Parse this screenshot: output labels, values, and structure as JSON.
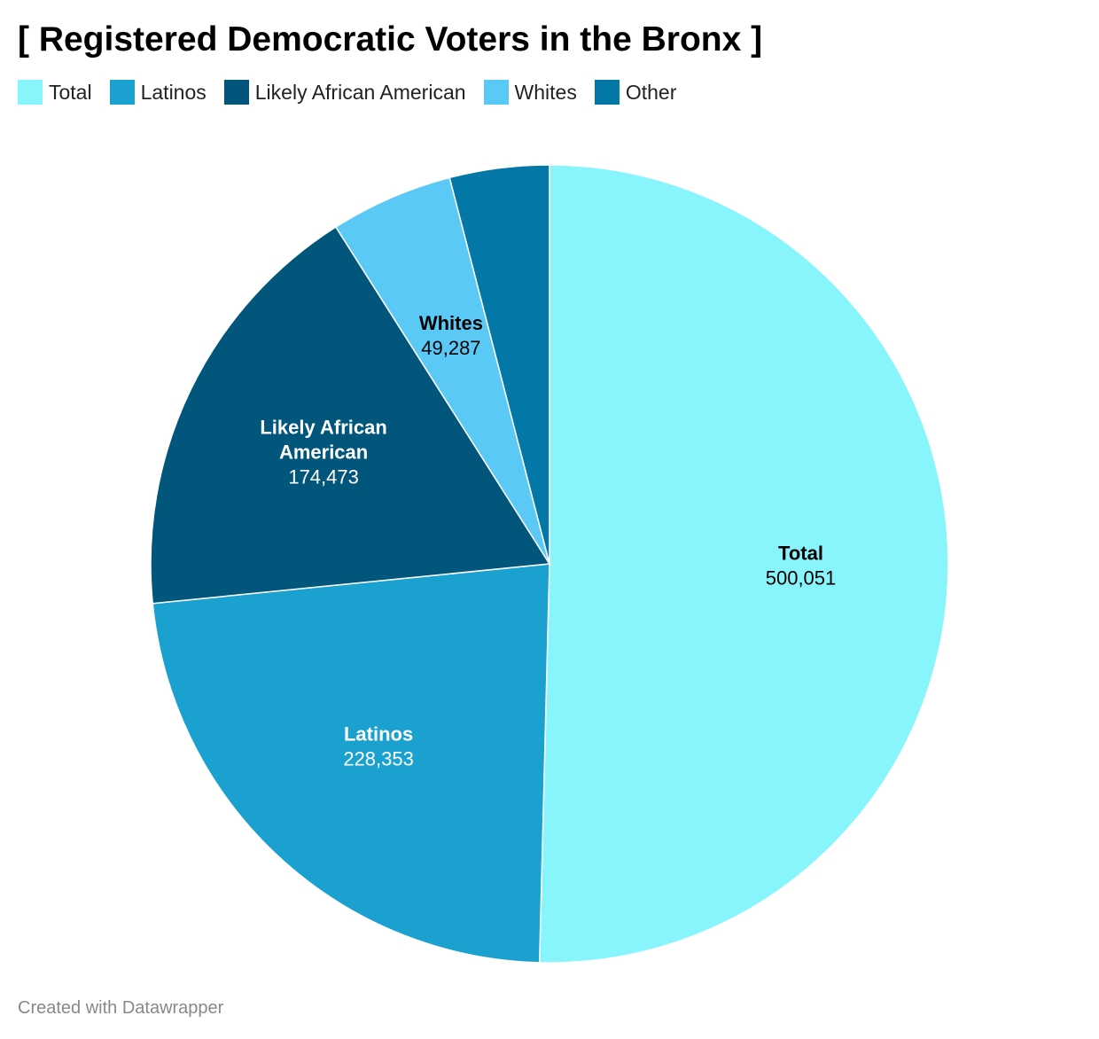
{
  "title": "[ Registered Democratic Voters in the Bronx ]",
  "credit": "Created with Datawrapper",
  "colors": {
    "background": "#ffffff",
    "slice_border": "#ffffff"
  },
  "chart_data": {
    "type": "pie",
    "title": "[ Registered Democratic Voters in the Bronx ]",
    "legend_placement": "top-left",
    "slices": [
      {
        "name": "Total",
        "value": 500051,
        "value_label": "500,051",
        "color": "#88f4fc",
        "label_lines": [
          "Total"
        ],
        "label_color": "#000000",
        "show_label": true
      },
      {
        "name": "Latinos",
        "value": 228353,
        "value_label": "228,353",
        "color": "#1aa1cf",
        "label_lines": [
          "Latinos"
        ],
        "label_color": "#ffffff",
        "show_label": true
      },
      {
        "name": "Likely African American",
        "value": 174473,
        "value_label": "174,473",
        "color": "#02567c",
        "label_lines": [
          "Likely African",
          "American"
        ],
        "label_color": "#ffffff",
        "show_label": true
      },
      {
        "name": "Whites",
        "value": 49287,
        "value_label": "49,287",
        "color": "#5ac9f5",
        "label_lines": [
          "Whites"
        ],
        "label_color": "#000000",
        "show_label": true
      },
      {
        "name": "Other",
        "value": 40000,
        "value_label": "",
        "color": "#0377a6",
        "label_lines": [],
        "label_color": "#ffffff",
        "show_label": false
      }
    ]
  }
}
